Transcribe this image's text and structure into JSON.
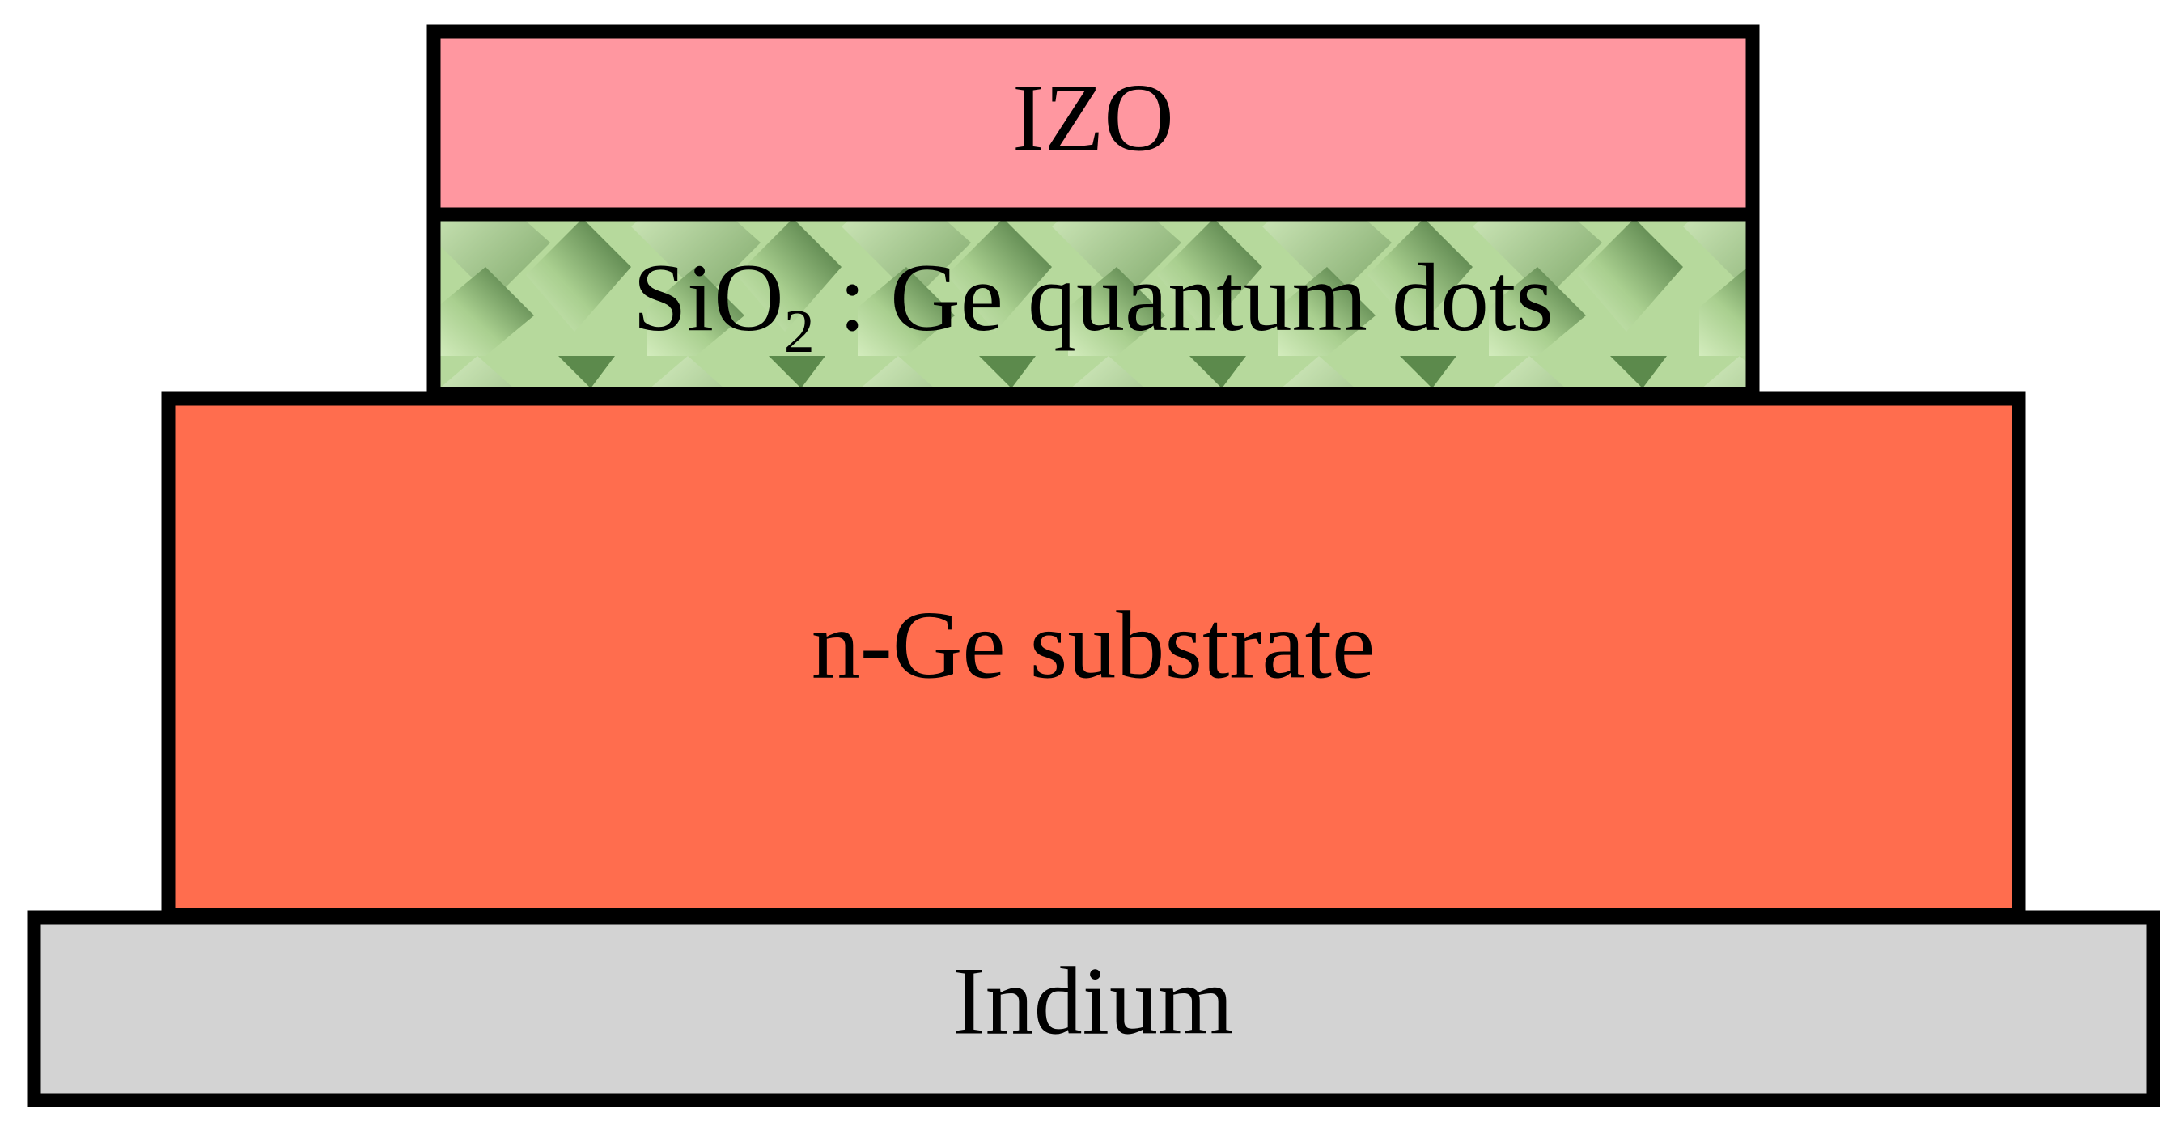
{
  "layers": [
    {
      "label": "IZO"
    },
    {
      "label": {
        "main": "SiO",
        "subscript": "2",
        "rest": " : Ge quantum dots"
      }
    },
    {
      "label": "n-Ge substrate"
    },
    {
      "label": "Indium"
    }
  ]
}
